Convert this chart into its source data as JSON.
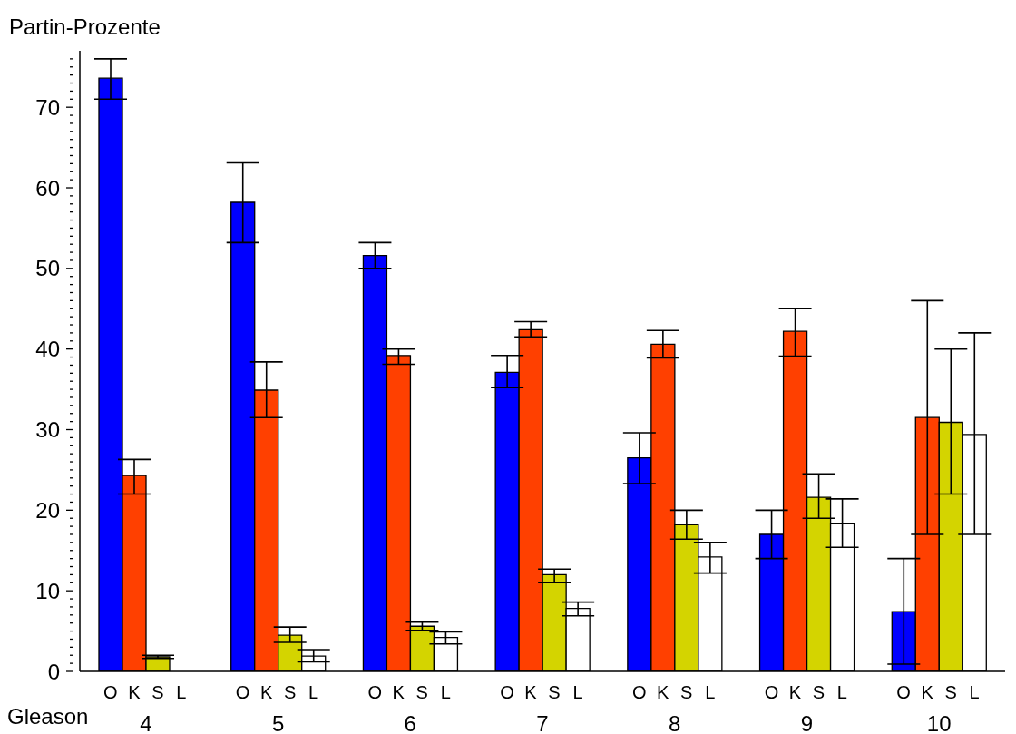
{
  "chart_data": {
    "type": "bar",
    "ylabel": "Partin-Prozente",
    "xlabel": "Gleason",
    "categories": [
      "4",
      "5",
      "6",
      "7",
      "8",
      "9",
      "10"
    ],
    "series": [
      {
        "name": "O",
        "color": "#0000ff",
        "values": [
          73.6,
          58.2,
          51.6,
          37.1,
          26.5,
          17.0,
          7.4
        ],
        "errors": [
          [
            71.0,
            76.0
          ],
          [
            53.2,
            63.1
          ],
          [
            50.0,
            53.2
          ],
          [
            35.2,
            39.2
          ],
          [
            23.3,
            29.6
          ],
          [
            14.0,
            20.0
          ],
          [
            0.9,
            14.0
          ]
        ]
      },
      {
        "name": "K",
        "color": "#ff4000",
        "values": [
          24.3,
          34.9,
          39.2,
          42.4,
          40.6,
          42.2,
          31.5
        ],
        "errors": [
          [
            22.0,
            26.3
          ],
          [
            31.5,
            38.4
          ],
          [
            38.1,
            40.0
          ],
          [
            41.5,
            43.4
          ],
          [
            38.9,
            42.3
          ],
          [
            39.1,
            45.0
          ],
          [
            17.0,
            46.0
          ]
        ]
      },
      {
        "name": "S",
        "color": "#d4d400",
        "values": [
          1.8,
          4.5,
          5.6,
          12.0,
          18.2,
          21.6,
          30.9
        ],
        "errors": [
          [
            1.6,
            2.0
          ],
          [
            3.6,
            5.5
          ],
          [
            5.1,
            6.1
          ],
          [
            11.0,
            12.7
          ],
          [
            16.4,
            20.0
          ],
          [
            19.0,
            24.5
          ],
          [
            22.0,
            40.0
          ]
        ]
      },
      {
        "name": "L",
        "color": "#ffffff",
        "values": [
          null,
          1.9,
          4.2,
          7.8,
          14.2,
          18.4,
          29.4
        ],
        "errors": [
          null,
          [
            1.2,
            2.7
          ],
          [
            3.4,
            4.9
          ],
          [
            6.9,
            8.6
          ],
          [
            12.2,
            16.0
          ],
          [
            15.4,
            21.4
          ],
          [
            17.0,
            42.0
          ]
        ]
      }
    ],
    "ylim": [
      0,
      77
    ],
    "yticks": [
      0,
      {
        "value": 1,
        "label": null
      },
      {
        "value": 2,
        "label": null
      },
      {
        "value": 3,
        "label": null
      },
      {
        "value": 4,
        "label": null
      },
      {
        "value": 5,
        "label": null
      },
      {
        "value": 6,
        "label": null
      },
      {
        "value": 7,
        "label": null
      },
      {
        "value": 8,
        "label": null
      },
      {
        "value": 9,
        "label": null
      },
      10,
      {
        "value": 11,
        "label": null
      },
      {
        "value": 12,
        "label": null
      },
      {
        "value": 13,
        "label": null
      },
      {
        "value": 14,
        "label": null
      },
      {
        "value": 15,
        "label": null
      },
      {
        "value": 16,
        "label": null
      },
      {
        "value": 17,
        "label": null
      },
      {
        "value": 18,
        "label": null
      },
      {
        "value": 19,
        "label": null
      },
      20,
      {
        "value": 21,
        "label": null
      },
      {
        "value": 22,
        "label": null
      },
      {
        "value": 23,
        "label": null
      },
      {
        "value": 24,
        "label": null
      },
      {
        "value": 25,
        "label": null
      },
      {
        "value": 26,
        "label": null
      },
      {
        "value": 27,
        "label": null
      },
      {
        "value": 28,
        "label": null
      },
      {
        "value": 29,
        "label": null
      },
      30,
      {
        "value": 31,
        "label": null
      },
      {
        "value": 32,
        "label": null
      },
      {
        "value": 33,
        "label": null
      },
      {
        "value": 34,
        "label": null
      },
      {
        "value": 35,
        "label": null
      },
      {
        "value": 36,
        "label": null
      },
      {
        "value": 37,
        "label": null
      },
      {
        "value": 38,
        "label": null
      },
      {
        "value": 39,
        "label": null
      },
      40,
      {
        "value": 41,
        "label": null
      },
      {
        "value": 42,
        "label": null
      },
      {
        "value": 43,
        "label": null
      },
      {
        "value": 44,
        "label": null
      },
      {
        "value": 45,
        "label": null
      },
      {
        "value": 46,
        "label": null
      },
      {
        "value": 47,
        "label": null
      },
      {
        "value": 48,
        "label": null
      },
      {
        "value": 49,
        "label": null
      },
      50,
      {
        "value": 51,
        "label": null
      },
      {
        "value": 52,
        "label": null
      },
      {
        "value": 53,
        "label": null
      },
      {
        "value": 54,
        "label": null
      },
      {
        "value": 55,
        "label": null
      },
      {
        "value": 56,
        "label": null
      },
      {
        "value": 57,
        "label": null
      },
      {
        "value": 58,
        "label": null
      },
      {
        "value": 59,
        "label": null
      },
      60,
      {
        "value": 61,
        "label": null
      },
      {
        "value": 62,
        "label": null
      },
      {
        "value": 63,
        "label": null
      },
      {
        "value": 64,
        "label": null
      },
      {
        "value": 65,
        "label": null
      },
      {
        "value": 66,
        "label": null
      },
      {
        "value": 67,
        "label": null
      },
      {
        "value": 68,
        "label": null
      },
      {
        "value": 69,
        "label": null
      },
      70,
      {
        "value": 71,
        "label": null
      },
      {
        "value": 72,
        "label": null
      },
      {
        "value": 73,
        "label": null
      },
      {
        "value": 74,
        "label": null
      },
      {
        "value": 75,
        "label": null
      },
      {
        "value": 76,
        "label": null
      }
    ]
  }
}
